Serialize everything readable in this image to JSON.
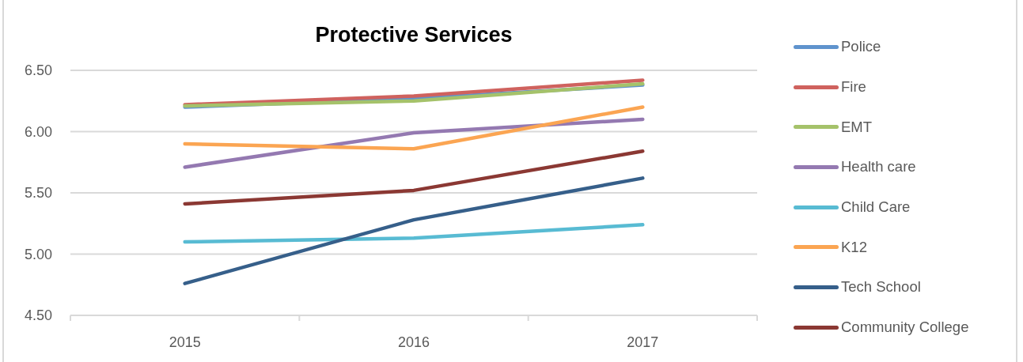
{
  "chart_data": {
    "type": "line",
    "title": "Protective Services",
    "categories": [
      "2015",
      "2016",
      "2017"
    ],
    "series": [
      {
        "name": "Police",
        "color": "#5f93cd",
        "values": [
          6.2,
          6.27,
          6.38
        ]
      },
      {
        "name": "Fire",
        "color": "#cf625e",
        "values": [
          6.22,
          6.29,
          6.42
        ]
      },
      {
        "name": "EMT",
        "color": "#a5c26a",
        "values": [
          6.21,
          6.25,
          6.39
        ]
      },
      {
        "name": "Health care",
        "color": "#9479b1",
        "values": [
          5.71,
          5.99,
          6.1
        ]
      },
      {
        "name": "Child Care",
        "color": "#58bbd3",
        "values": [
          5.1,
          5.13,
          5.24
        ]
      },
      {
        "name": "K12",
        "color": "#fba552",
        "values": [
          5.9,
          5.86,
          6.2
        ]
      },
      {
        "name": "Tech School",
        "color": "#365f8a",
        "values": [
          4.76,
          5.28,
          5.62
        ]
      },
      {
        "name": "Community College",
        "color": "#8b3833",
        "values": [
          5.41,
          5.52,
          5.84
        ]
      }
    ],
    "ylim": [
      4.5,
      6.5
    ],
    "yticks": [
      {
        "value": 4.5,
        "label": "4.50"
      },
      {
        "value": 5,
        "label": "5.00"
      },
      {
        "value": 5.5,
        "label": "5.50"
      },
      {
        "value": 6,
        "label": "6.00"
      },
      {
        "value": 6.5,
        "label": "6.50"
      }
    ],
    "grid": "y",
    "legend": "right"
  }
}
